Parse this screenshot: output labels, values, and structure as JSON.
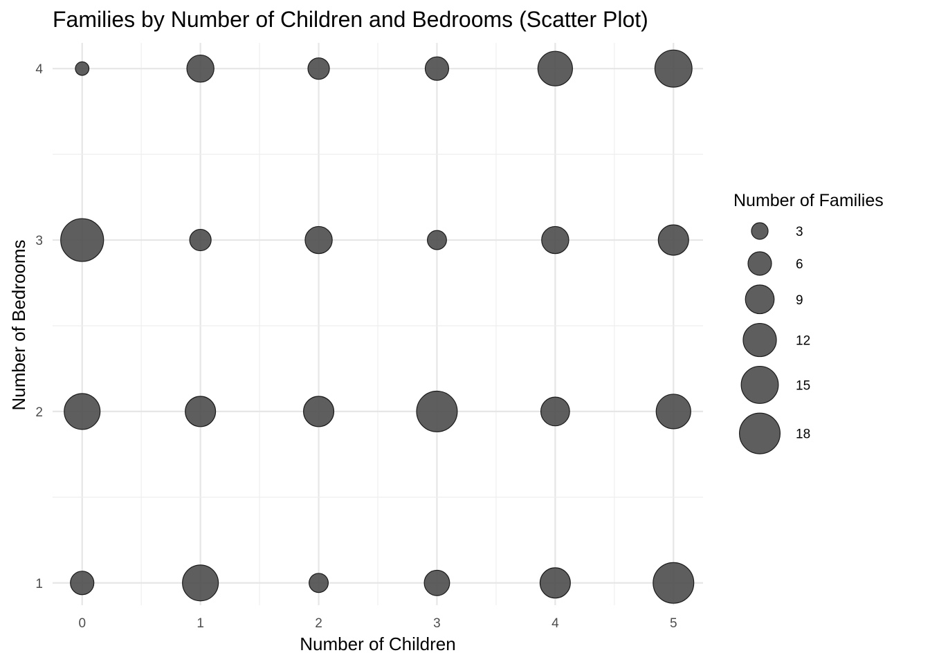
{
  "chart_data": {
    "type": "scatter",
    "title": "Families by Number of Children and Bedrooms (Scatter Plot)",
    "xlabel": "Number of Children",
    "ylabel": "Number of Bedrooms",
    "x_ticks": [
      0,
      1,
      2,
      3,
      4,
      5
    ],
    "y_ticks": [
      1,
      2,
      3,
      4
    ],
    "xlim": [
      -0.25,
      5.25
    ],
    "ylim": [
      0.87,
      4.15
    ],
    "grid": true,
    "legend": {
      "title": "Number of Families",
      "placement": "right",
      "values": [
        3,
        6,
        9,
        12,
        15,
        18
      ]
    },
    "size_range": [
      2,
      20
    ],
    "point_color": "#4d4d4d",
    "point_stroke": "#1a1a1a",
    "points": [
      {
        "x": 0,
        "y": 1,
        "families": 6
      },
      {
        "x": 1,
        "y": 1,
        "families": 14
      },
      {
        "x": 2,
        "y": 1,
        "families": 4
      },
      {
        "x": 3,
        "y": 1,
        "families": 7
      },
      {
        "x": 4,
        "y": 1,
        "families": 10
      },
      {
        "x": 5,
        "y": 1,
        "families": 18
      },
      {
        "x": 0,
        "y": 2,
        "families": 14
      },
      {
        "x": 1,
        "y": 2,
        "families": 10
      },
      {
        "x": 2,
        "y": 2,
        "families": 10
      },
      {
        "x": 3,
        "y": 2,
        "families": 18
      },
      {
        "x": 4,
        "y": 2,
        "families": 9
      },
      {
        "x": 5,
        "y": 2,
        "families": 13
      },
      {
        "x": 0,
        "y": 3,
        "families": 20
      },
      {
        "x": 1,
        "y": 3,
        "families": 5
      },
      {
        "x": 2,
        "y": 3,
        "families": 8
      },
      {
        "x": 3,
        "y": 3,
        "families": 4
      },
      {
        "x": 4,
        "y": 3,
        "families": 8
      },
      {
        "x": 5,
        "y": 3,
        "families": 10
      },
      {
        "x": 0,
        "y": 4,
        "families": 2
      },
      {
        "x": 1,
        "y": 4,
        "families": 8
      },
      {
        "x": 2,
        "y": 4,
        "families": 5
      },
      {
        "x": 3,
        "y": 4,
        "families": 6
      },
      {
        "x": 4,
        "y": 4,
        "families": 13
      },
      {
        "x": 5,
        "y": 4,
        "families": 15
      }
    ]
  }
}
